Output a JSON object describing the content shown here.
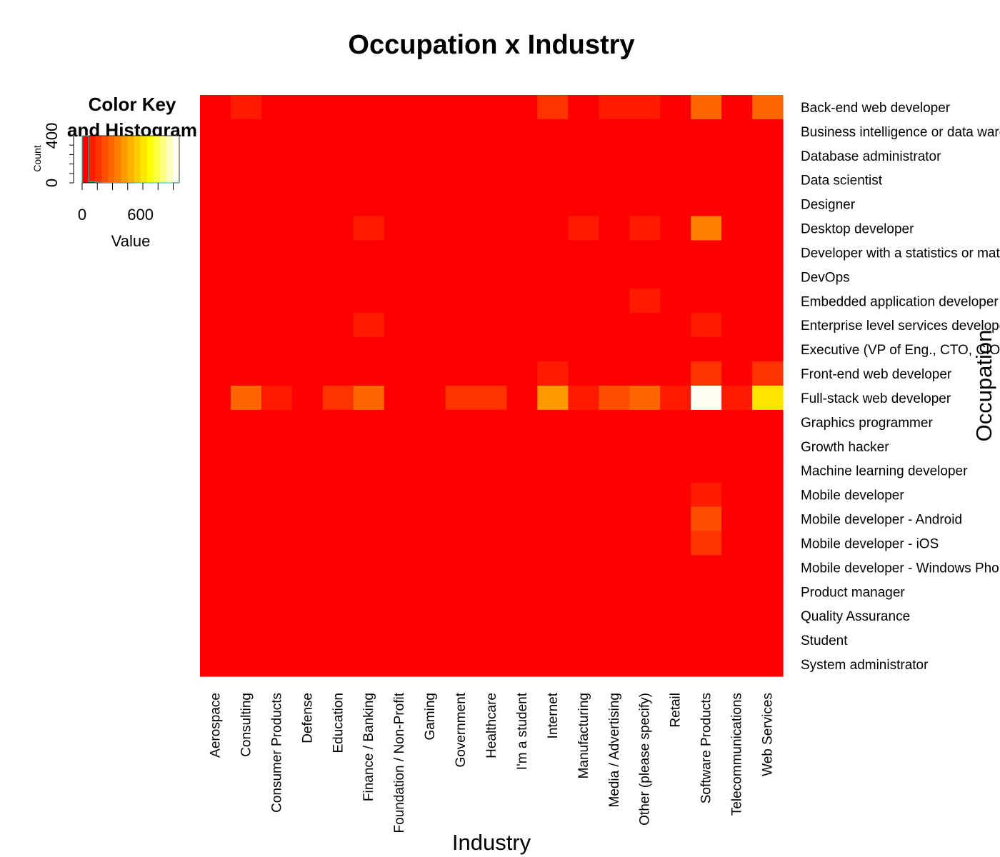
{
  "chart_data": {
    "type": "heatmap",
    "title": "Occupation x Industry",
    "xlabel": "Industry",
    "ylabel": "Occupation",
    "x": [
      "Aerospace",
      "Consulting",
      "Consumer Products",
      "Defense",
      "Education",
      "Finance / Banking",
      "Foundation / Non-Profit",
      "Gaming",
      "Government",
      "Healthcare",
      "I'm a student",
      "Internet",
      "Manufacturing",
      "Media / Advertising",
      "Other (please specify)",
      "Retail",
      "Software Products",
      "Telecommunications",
      "Web Services"
    ],
    "y": [
      "Back-end web developer",
      "Business intelligence or data warehousing expert",
      "Database administrator",
      "Data scientist",
      "Designer",
      "Desktop developer",
      "Developer with a statistics or mathematics background",
      "DevOps",
      "Embedded application developer",
      "Enterprise level services developer",
      "Executive (VP of Eng., CTO, CIO, etc.)",
      "Front-end web developer",
      "Full-stack web developer",
      "Graphics programmer",
      "Growth hacker",
      "Machine learning developer",
      "Mobile developer",
      "Mobile developer - Android",
      "Mobile developer - iOS",
      "Mobile developer - Windows Phone",
      "Product manager",
      "Quality Assurance",
      "Student",
      "System administrator"
    ],
    "z": [
      [
        5,
        70,
        5,
        5,
        5,
        65,
        5,
        5,
        5,
        5,
        5,
        150,
        5,
        130,
        130,
        10,
        300,
        5,
        270
      ],
      [
        5,
        10,
        5,
        5,
        5,
        10,
        5,
        5,
        5,
        5,
        5,
        10,
        5,
        5,
        10,
        5,
        15,
        5,
        10
      ],
      [
        5,
        10,
        5,
        5,
        5,
        10,
        5,
        5,
        5,
        5,
        5,
        10,
        5,
        5,
        10,
        5,
        15,
        5,
        10
      ],
      [
        5,
        10,
        5,
        5,
        5,
        10,
        5,
        5,
        5,
        5,
        5,
        10,
        5,
        5,
        10,
        5,
        15,
        5,
        10
      ],
      [
        5,
        10,
        5,
        5,
        5,
        10,
        5,
        5,
        5,
        5,
        5,
        10,
        5,
        5,
        10,
        5,
        15,
        5,
        10
      ],
      [
        5,
        20,
        5,
        5,
        5,
        70,
        5,
        5,
        5,
        5,
        5,
        20,
        75,
        5,
        80,
        5,
        350,
        5,
        20
      ],
      [
        5,
        10,
        5,
        5,
        5,
        10,
        5,
        5,
        5,
        5,
        5,
        10,
        5,
        5,
        10,
        5,
        15,
        5,
        10
      ],
      [
        5,
        10,
        5,
        5,
        5,
        10,
        5,
        5,
        5,
        5,
        5,
        10,
        5,
        5,
        10,
        5,
        20,
        5,
        15
      ],
      [
        5,
        5,
        5,
        5,
        5,
        5,
        5,
        5,
        5,
        5,
        5,
        5,
        5,
        5,
        75,
        5,
        20,
        5,
        5
      ],
      [
        5,
        10,
        5,
        5,
        5,
        70,
        5,
        5,
        5,
        5,
        5,
        10,
        5,
        5,
        10,
        5,
        80,
        5,
        10
      ],
      [
        5,
        10,
        5,
        5,
        5,
        10,
        5,
        5,
        5,
        5,
        5,
        10,
        5,
        5,
        10,
        5,
        15,
        5,
        10
      ],
      [
        5,
        20,
        5,
        5,
        5,
        20,
        5,
        5,
        5,
        5,
        5,
        90,
        5,
        15,
        20,
        5,
        180,
        5,
        170
      ],
      [
        5,
        280,
        90,
        5,
        160,
        310,
        5,
        5,
        170,
        170,
        5,
        450,
        90,
        240,
        300,
        80,
        1000,
        90,
        630
      ],
      [
        5,
        5,
        5,
        5,
        5,
        5,
        5,
        5,
        5,
        5,
        5,
        5,
        5,
        5,
        5,
        5,
        10,
        5,
        5
      ],
      [
        5,
        5,
        5,
        5,
        5,
        5,
        5,
        5,
        5,
        5,
        5,
        5,
        5,
        5,
        5,
        5,
        10,
        5,
        5
      ],
      [
        5,
        5,
        5,
        5,
        5,
        5,
        5,
        5,
        5,
        5,
        5,
        5,
        5,
        5,
        5,
        5,
        10,
        5,
        5
      ],
      [
        5,
        10,
        5,
        5,
        5,
        10,
        5,
        5,
        5,
        5,
        5,
        10,
        5,
        5,
        10,
        5,
        80,
        5,
        10
      ],
      [
        5,
        10,
        5,
        5,
        5,
        10,
        5,
        5,
        5,
        5,
        5,
        15,
        5,
        5,
        10,
        5,
        220,
        5,
        10
      ],
      [
        5,
        10,
        5,
        5,
        5,
        10,
        5,
        5,
        5,
        5,
        5,
        15,
        5,
        5,
        10,
        5,
        170,
        5,
        10
      ],
      [
        5,
        5,
        5,
        5,
        5,
        5,
        5,
        5,
        5,
        5,
        5,
        5,
        5,
        5,
        5,
        5,
        10,
        5,
        5
      ],
      [
        5,
        5,
        5,
        5,
        5,
        5,
        5,
        5,
        5,
        5,
        5,
        5,
        5,
        5,
        5,
        5,
        10,
        5,
        5
      ],
      [
        5,
        5,
        5,
        5,
        5,
        5,
        5,
        5,
        5,
        5,
        5,
        5,
        5,
        5,
        5,
        5,
        10,
        5,
        5
      ],
      [
        5,
        5,
        5,
        5,
        5,
        5,
        5,
        5,
        5,
        5,
        5,
        5,
        5,
        5,
        5,
        5,
        10,
        5,
        5
      ],
      [
        5,
        5,
        5,
        5,
        5,
        5,
        5,
        5,
        5,
        5,
        5,
        5,
        5,
        5,
        5,
        5,
        10,
        5,
        5
      ]
    ],
    "zlim": [
      0,
      1000
    ],
    "palette": [
      "#FF0000",
      "#FF1A00",
      "#FF3300",
      "#FF4D00",
      "#FF6600",
      "#FF8000",
      "#FF9900",
      "#FFB300",
      "#FFCC00",
      "#FFE500",
      "#FFFF00",
      "#FFFF40",
      "#FFFF80",
      "#FFFFBF",
      "#FFFFF0"
    ],
    "grid": false,
    "color_key": {
      "title_line1": "Color Key",
      "title_line2": "and Histogram",
      "xlabel": "Value",
      "ylabel": "Count",
      "x_ticks": [
        "0",
        "600"
      ],
      "x_tick_values": [
        0,
        600
      ],
      "y_ticks": [
        "0",
        "400"
      ],
      "y_tick_values": [
        0,
        400
      ],
      "xlim": [
        0,
        1000
      ],
      "ylim": [
        0,
        400
      ],
      "histogram_counts": [
        420,
        10,
        5,
        3,
        2,
        1,
        1,
        1,
        0,
        0,
        0,
        0,
        0,
        0,
        1
      ]
    }
  }
}
